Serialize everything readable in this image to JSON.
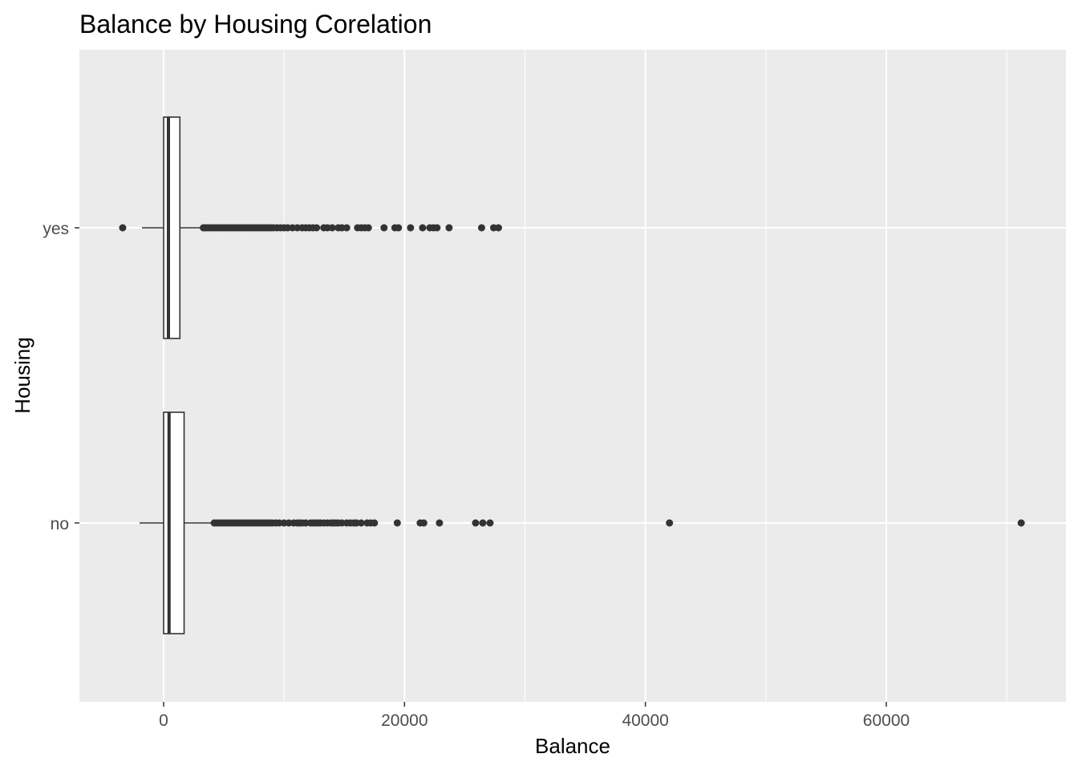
{
  "chart_data": {
    "type": "boxplot",
    "orientation": "horizontal",
    "title": "Balance by Housing Corelation",
    "xlabel": "Balance",
    "ylabel": "Housing",
    "xlim": [
      -3500,
      75000
    ],
    "x_ticks": [
      0,
      20000,
      40000,
      60000
    ],
    "x_tick_labels": [
      "0",
      "20000",
      "40000",
      "60000"
    ],
    "grid": true,
    "categories": [
      "no",
      "yes"
    ],
    "boxes": [
      {
        "category": "no",
        "whisker_low": -2000,
        "q1": 0,
        "median": 450,
        "q3": 1700,
        "whisker_high": 4150,
        "outliers": [
          4200,
          4400,
          4600,
          4800,
          5000,
          5200,
          5400,
          5600,
          5800,
          6000,
          6200,
          6400,
          6600,
          6800,
          7000,
          7200,
          7400,
          7600,
          7800,
          8000,
          8200,
          8400,
          8600,
          8800,
          9000,
          9300,
          9600,
          10000,
          10400,
          10800,
          11100,
          11300,
          11500,
          11800,
          12200,
          12400,
          12600,
          12800,
          13000,
          13300,
          13600,
          13900,
          14100,
          14300,
          14500,
          14800,
          15200,
          15500,
          15800,
          16000,
          16400,
          16900,
          17200,
          17500,
          19400,
          21300,
          21600,
          22900,
          25900,
          26500,
          27100,
          42000,
          71200
        ]
      },
      {
        "category": "yes",
        "whisker_low": -1800,
        "q1": 0,
        "median": 400,
        "q3": 1350,
        "whisker_high": 3200,
        "outliers": [
          -3400,
          3300,
          3500,
          3700,
          3900,
          4100,
          4300,
          4500,
          4700,
          4900,
          5100,
          5300,
          5500,
          5700,
          5900,
          6100,
          6300,
          6500,
          6700,
          6900,
          7100,
          7300,
          7500,
          7700,
          7900,
          8100,
          8300,
          8500,
          8700,
          8900,
          9100,
          9400,
          9700,
          10000,
          10300,
          10700,
          11100,
          11500,
          11800,
          12100,
          12400,
          12700,
          13300,
          13600,
          14000,
          14500,
          14800,
          15200,
          16100,
          16400,
          16700,
          17000,
          18300,
          19200,
          19500,
          20500,
          21500,
          22100,
          22400,
          22700,
          23700,
          26400,
          27400,
          27800
        ]
      }
    ]
  }
}
